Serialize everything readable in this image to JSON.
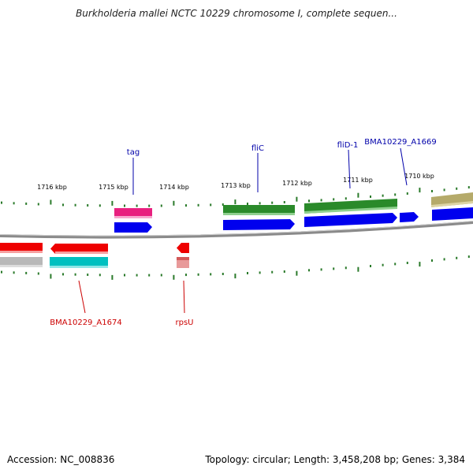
{
  "title": "Burkholderia mallei NCTC 10229 chromosome I, complete sequen...",
  "footer": {
    "accession": "Accession: NC_008836",
    "summary": "Topology: circular; Length: 3,458,208 bp; Genes: 3,384"
  },
  "colors": {
    "backbone": "#8a8a8a",
    "tick": "#2a7a2a",
    "label_forward": "#0000aa",
    "label_reverse": "#cc0000",
    "cds": "#0000ee",
    "gene_magenta": "#e8207f",
    "gene_green": "#2a8a2a",
    "gene_olive": "#b5aa6a",
    "gene_red": "#ee0000",
    "gene_cyan": "#00c0c0",
    "gene_pink": "#e89a9a",
    "gene_gray": "#b8b8b8"
  },
  "kbp_ticks": [
    "1716 kbp",
    "1715 kbp",
    "1714 kbp",
    "1713 kbp",
    "1712 kbp",
    "1711 kbp",
    "1710 kbp"
  ],
  "gene_labels": {
    "tag": "tag",
    "fliC": "fliC",
    "fliD": "fliD-1",
    "a1669": "BMA10229_A1669",
    "a1674": "BMA10229_A1674",
    "rpsU": "rpsU"
  }
}
